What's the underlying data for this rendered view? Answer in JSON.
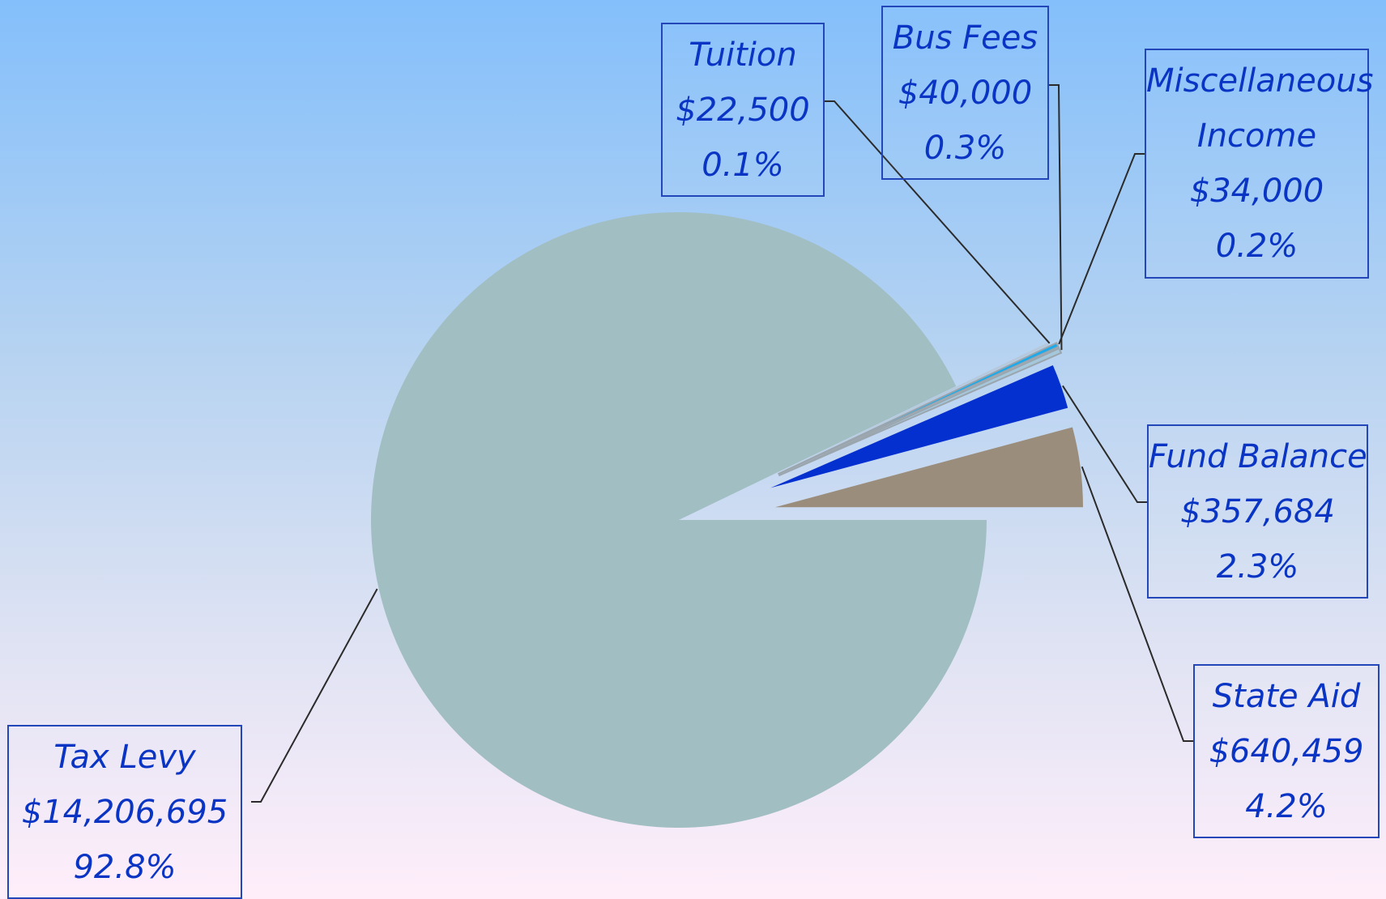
{
  "chart_data": {
    "type": "pie",
    "title": "",
    "legend": "none",
    "exploded": true,
    "slices": [
      {
        "label": "Tax Levy",
        "value": 14206695,
        "display_value": "$14,206,695",
        "percent": "92.8%",
        "color": "#a1bec2"
      },
      {
        "label": "State Aid",
        "value": 640459,
        "display_value": "$640,459",
        "percent": "4.2%",
        "color": "#9b8d7b"
      },
      {
        "label": "Fund Balance",
        "value": 357684,
        "display_value": "$357,684",
        "percent": "2.3%",
        "color": "#0530d0"
      },
      {
        "label": "Bus Fees",
        "value": 40000,
        "display_value": "$40,000",
        "percent": "0.3%",
        "color": "#a5c7dc"
      },
      {
        "label": "Miscellaneous Income",
        "label_lines": [
          "Miscellaneous",
          "Income"
        ],
        "value": 34000,
        "display_value": "$34,000",
        "percent": "0.2%",
        "color": "#1ea9ea"
      },
      {
        "label": "Tuition",
        "value": 22500,
        "display_value": "$22,500",
        "percent": "0.1%",
        "color": "#b6c9dc"
      }
    ]
  }
}
